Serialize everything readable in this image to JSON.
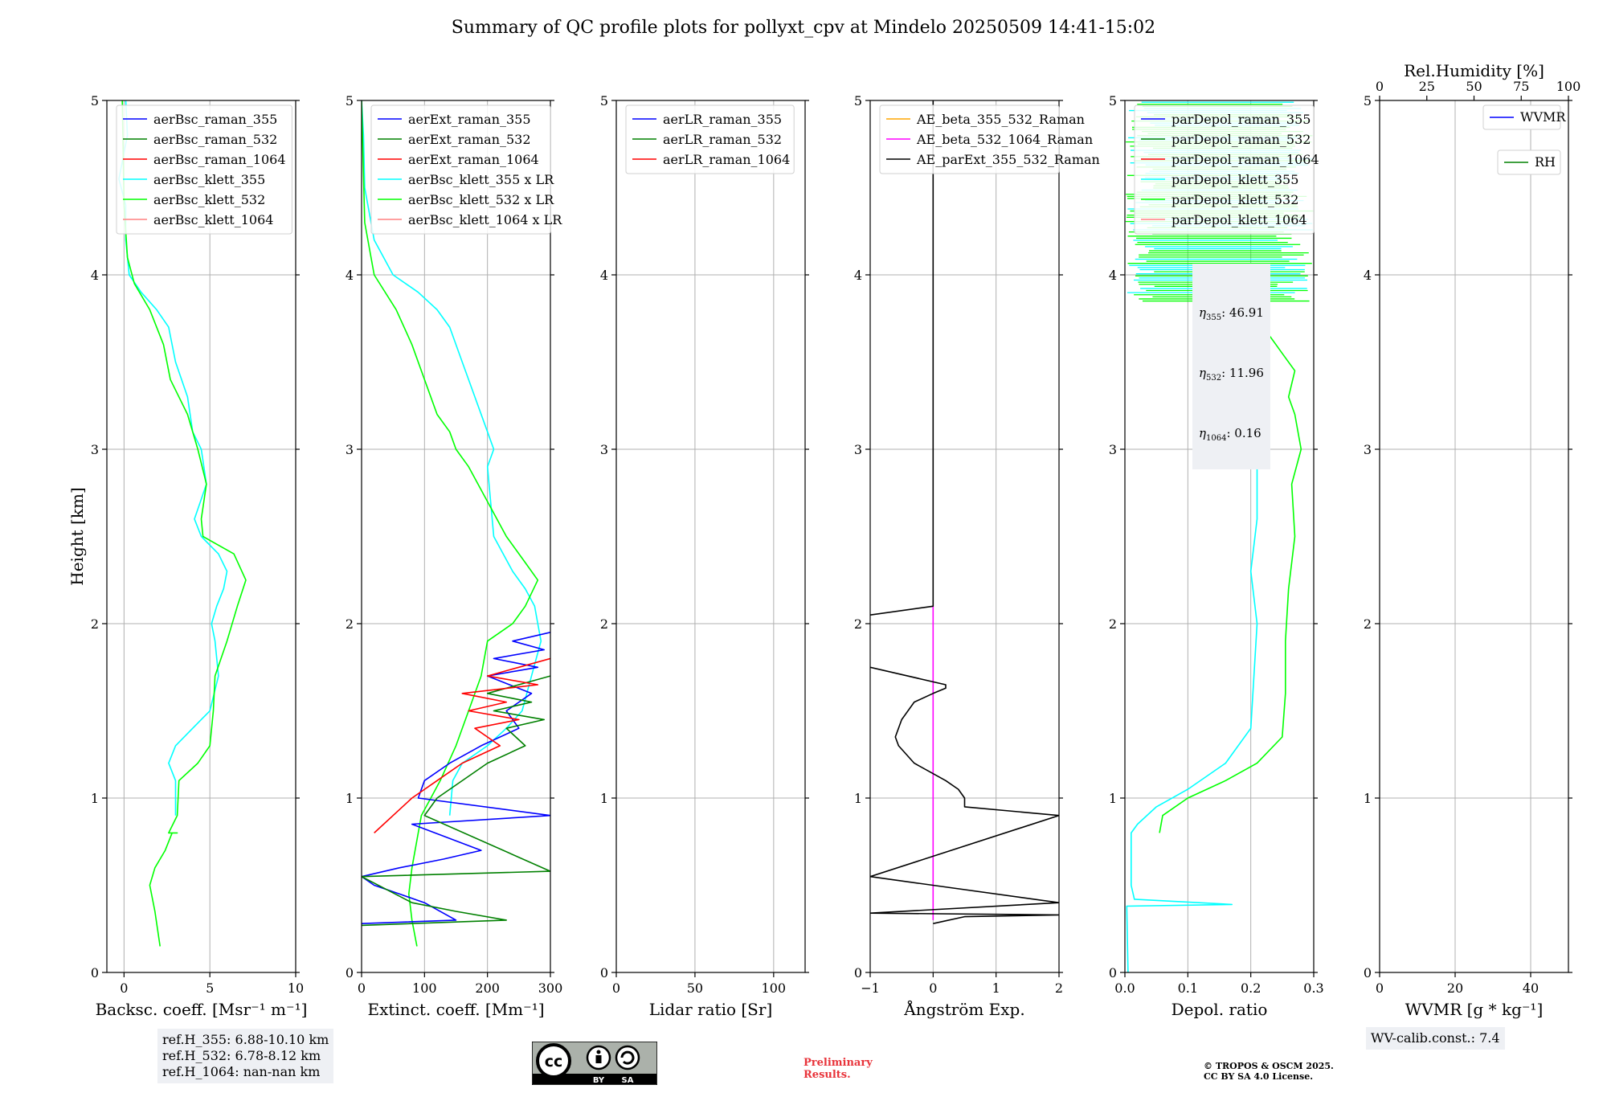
{
  "title": "Summary of QC profile plots for pollyxt_cpv at Mindelo 20250509 14:41-15:02",
  "colors": {
    "blue": "#0000ff",
    "green": "#008000",
    "red": "#ff0000",
    "cyan": "#00ffff",
    "lime": "#00ff00",
    "pink": "#ff8080",
    "orange": "#ffa500",
    "magenta": "#ff00ff",
    "black": "#000000"
  },
  "chart_data": [
    {
      "type": "line",
      "id": "bsc",
      "xlabel": "Backsc. coeff. [Msr⁻¹ m⁻¹]",
      "ylabel": "Height [km]",
      "xlim": [
        -1,
        10
      ],
      "ylim": [
        0,
        5
      ],
      "xticks": [
        0,
        5,
        10
      ],
      "xticklabels": [
        "0",
        "5",
        "10"
      ],
      "yticks": [
        0,
        1,
        2,
        3,
        4,
        5
      ],
      "yticklabels": [
        "0",
        "1",
        "2",
        "3",
        "4",
        "5"
      ],
      "grid": true,
      "legend": "top",
      "legend_entries": [
        {
          "name": "aerBsc_raman_355",
          "color": "#0000ff"
        },
        {
          "name": "aerBsc_raman_532",
          "color": "#008000"
        },
        {
          "name": "aerBsc_raman_1064",
          "color": "#ff0000"
        },
        {
          "name": "aerBsc_klett_355",
          "color": "#00ffff"
        },
        {
          "name": "aerBsc_klett_532",
          "color": "#00ff00"
        },
        {
          "name": "aerBsc_klett_1064",
          "color": "#ff8080"
        }
      ],
      "series": [
        {
          "name": "aerBsc_klett_355",
          "color": "#00ffff",
          "x": [
            3.0,
            3.0,
            2.6,
            3.0,
            4.0,
            5.0,
            5.5,
            5.3,
            5.1,
            5.4,
            5.8,
            6.0,
            5.5,
            4.5,
            4.1,
            4.8,
            4.5,
            4.0,
            3.7,
            3.0,
            2.6,
            1.9,
            1.0,
            0.3,
            0.1,
            0.1,
            -0.3,
            0.2,
            0.1
          ],
          "y": [
            0.9,
            1.1,
            1.2,
            1.3,
            1.4,
            1.5,
            1.7,
            1.9,
            2.0,
            2.1,
            2.2,
            2.3,
            2.4,
            2.5,
            2.6,
            2.8,
            3.0,
            3.1,
            3.3,
            3.5,
            3.7,
            3.8,
            3.9,
            4.0,
            4.2,
            4.4,
            4.55,
            4.8,
            5.0
          ]
        },
        {
          "name": "aerBsc_klett_532",
          "color": "#00ff00",
          "x": [
            2.1,
            1.8,
            1.5,
            1.8,
            2.4,
            2.8,
            3.1,
            2.6,
            3.1,
            3.2,
            4.3,
            5.0,
            5.2,
            5.3,
            6.0,
            6.6,
            7.1,
            6.4,
            4.6,
            4.5,
            4.8,
            4.3,
            3.7,
            2.7,
            2.3,
            1.5,
            0.6,
            0.2,
            0.0,
            -0.1
          ],
          "y": [
            0.15,
            0.35,
            0.5,
            0.6,
            0.7,
            0.8,
            0.8,
            0.8,
            0.9,
            1.1,
            1.2,
            1.3,
            1.5,
            1.7,
            1.9,
            2.1,
            2.25,
            2.4,
            2.5,
            2.6,
            2.8,
            3.0,
            3.2,
            3.4,
            3.6,
            3.8,
            3.95,
            4.1,
            4.4,
            5.0
          ]
        }
      ]
    },
    {
      "type": "line",
      "id": "ext",
      "xlabel": "Extinct. coeff. [Mm⁻¹]",
      "ylabel": "",
      "xlim": [
        0,
        300
      ],
      "ylim": [
        0,
        5
      ],
      "xticks": [
        0,
        100,
        200,
        300
      ],
      "xticklabels": [
        "0",
        "100",
        "200",
        "300"
      ],
      "yticks": [
        0,
        1,
        2,
        3,
        4,
        5
      ],
      "yticklabels": [
        "0",
        "1",
        "2",
        "3",
        "4",
        "5"
      ],
      "grid": true,
      "legend": "top",
      "legend_entries": [
        {
          "name": "aerExt_raman_355",
          "color": "#0000ff"
        },
        {
          "name": "aerExt_raman_532",
          "color": "#008000"
        },
        {
          "name": "aerExt_raman_1064",
          "color": "#ff0000"
        },
        {
          "name": "aerBsc_klett_355 x LR",
          "color": "#00ffff"
        },
        {
          "name": "aerBsc_klett_532 x LR",
          "color": "#00ff00"
        },
        {
          "name": "aerBsc_klett_1064 x LR",
          "color": "#ff8080"
        }
      ],
      "series": [
        {
          "name": "aerBsc_klett_355 x LR",
          "color": "#00ffff",
          "x": [
            140,
            145,
            160,
            200,
            230,
            255,
            270,
            285,
            280,
            275,
            260,
            240,
            210,
            205,
            200,
            210,
            200,
            180,
            160,
            140,
            120,
            90,
            50,
            20,
            5,
            3,
            0
          ],
          "y": [
            0.9,
            1.1,
            1.2,
            1.3,
            1.4,
            1.5,
            1.7,
            1.9,
            2.0,
            2.1,
            2.2,
            2.3,
            2.5,
            2.7,
            2.9,
            3.0,
            3.1,
            3.3,
            3.5,
            3.7,
            3.8,
            3.9,
            4.0,
            4.2,
            4.5,
            4.8,
            5.0
          ]
        },
        {
          "name": "aerBsc_klett_532 x LR",
          "color": "#00ff00",
          "x": [
            88,
            80,
            75,
            80,
            90,
            95,
            110,
            125,
            150,
            170,
            190,
            200,
            240,
            260,
            280,
            260,
            230,
            200,
            170,
            150,
            140,
            120,
            100,
            80,
            55,
            20,
            5,
            0
          ],
          "y": [
            0.15,
            0.3,
            0.45,
            0.6,
            0.8,
            0.9,
            1.0,
            1.1,
            1.3,
            1.5,
            1.7,
            1.9,
            2.0,
            2.1,
            2.25,
            2.35,
            2.5,
            2.7,
            2.9,
            3.0,
            3.1,
            3.2,
            3.4,
            3.6,
            3.8,
            4.0,
            4.3,
            5.0
          ]
        },
        {
          "name": "aerExt_raman_355",
          "color": "#0000ff",
          "x": [
            0,
            150,
            100,
            60,
            20,
            0,
            60,
            130,
            190,
            80,
            300,
            90,
            100,
            140,
            190,
            250,
            230,
            270,
            200,
            280,
            210,
            290,
            240,
            300
          ],
          "y": [
            0.28,
            0.3,
            0.4,
            0.45,
            0.5,
            0.55,
            0.6,
            0.65,
            0.7,
            0.85,
            0.9,
            1.0,
            1.1,
            1.2,
            1.3,
            1.4,
            1.5,
            1.6,
            1.7,
            1.75,
            1.8,
            1.85,
            1.9,
            1.95
          ]
        },
        {
          "name": "aerExt_raman_532",
          "color": "#008000",
          "x": [
            0,
            230,
            150,
            80,
            0,
            300,
            100,
            120,
            200,
            260,
            230,
            290,
            210,
            270,
            200,
            300
          ],
          "y": [
            0.27,
            0.3,
            0.35,
            0.4,
            0.55,
            0.58,
            0.9,
            1.0,
            1.2,
            1.3,
            1.4,
            1.45,
            1.5,
            1.55,
            1.6,
            1.7
          ]
        },
        {
          "name": "aerExt_raman_1064",
          "color": "#ff0000",
          "x": [
            20,
            50,
            80,
            120,
            160,
            220,
            180,
            250,
            170,
            230,
            160,
            280,
            200,
            300
          ],
          "y": [
            0.8,
            0.9,
            1.0,
            1.1,
            1.2,
            1.3,
            1.4,
            1.45,
            1.5,
            1.55,
            1.6,
            1.65,
            1.7,
            1.8
          ]
        }
      ]
    },
    {
      "type": "line",
      "id": "lr",
      "xlabel": "Lidar ratio [Sr]",
      "ylabel": "",
      "xlim": [
        0,
        120
      ],
      "ylim": [
        0,
        5
      ],
      "xticks": [
        0,
        50,
        100
      ],
      "xticklabels": [
        "0",
        "50",
        "100"
      ],
      "yticks": [
        0,
        1,
        2,
        3,
        4,
        5
      ],
      "yticklabels": [
        "0",
        "1",
        "2",
        "3",
        "4",
        "5"
      ],
      "grid": true,
      "legend": "top",
      "legend_entries": [
        {
          "name": "aerLR_raman_355",
          "color": "#0000ff"
        },
        {
          "name": "aerLR_raman_532",
          "color": "#008000"
        },
        {
          "name": "aerLR_raman_1064",
          "color": "#ff0000"
        }
      ],
      "series": []
    },
    {
      "type": "line",
      "id": "ae",
      "xlabel": "Ångström Exp.",
      "ylabel": "",
      "xlim": [
        -1,
        2
      ],
      "ylim": [
        0,
        5
      ],
      "xticks": [
        -1,
        0,
        1,
        2
      ],
      "xticklabels": [
        "−1",
        "0",
        "1",
        "2"
      ],
      "yticks": [
        0,
        1,
        2,
        3,
        4,
        5
      ],
      "yticklabels": [
        "0",
        "1",
        "2",
        "3",
        "4",
        "5"
      ],
      "grid": true,
      "legend": "top",
      "legend_entries": [
        {
          "name": "AE_beta_355_532_Raman",
          "color": "#ffa500"
        },
        {
          "name": "AE_beta_532_1064_Raman",
          "color": "#ff00ff"
        },
        {
          "name": "AE_parExt_355_532_Raman",
          "color": "#000000"
        }
      ],
      "series": [
        {
          "name": "AE_beta_532_1064_Raman",
          "color": "#ff00ff",
          "x": [
            0,
            0
          ],
          "y": [
            0.3,
            2.1
          ]
        },
        {
          "name": "AE_parExt_355_532_Raman",
          "color": "#000000",
          "x": [
            0,
            0.5,
            2,
            -1,
            2,
            -1,
            2,
            0.5,
            0.5,
            0.4,
            0.2,
            -0.3,
            -0.55,
            -0.6,
            -0.5,
            -0.3,
            0,
            0.2,
            0.2,
            -1
          ],
          "y": [
            0.28,
            0.32,
            0.33,
            0.34,
            0.4,
            0.55,
            0.9,
            0.95,
            1.0,
            1.05,
            1.1,
            1.2,
            1.3,
            1.35,
            1.45,
            1.55,
            1.6,
            1.63,
            1.65,
            1.75
          ]
        },
        {
          "name": "AE_parExt_355_532_Raman",
          "color": "#000000",
          "x": [
            -1,
            0,
            0,
            0
          ],
          "y": [
            2.05,
            2.1,
            4.3,
            5.0
          ]
        }
      ]
    },
    {
      "type": "line",
      "id": "depol",
      "xlabel": "Depol. ratio",
      "ylabel": "",
      "xlim": [
        0,
        0.3
      ],
      "ylim": [
        0,
        5
      ],
      "xticks": [
        0,
        0.1,
        0.2,
        0.3
      ],
      "xticklabels": [
        "0.0",
        "0.1",
        "0.2",
        "0.3"
      ],
      "yticks": [
        0,
        1,
        2,
        3,
        4,
        5
      ],
      "yticklabels": [
        "0",
        "1",
        "2",
        "3",
        "4",
        "5"
      ],
      "grid": true,
      "legend": "top",
      "legend_entries": [
        {
          "name": "parDepol_raman_355",
          "color": "#0000ff"
        },
        {
          "name": "parDepol_raman_532",
          "color": "#008000"
        },
        {
          "name": "parDepol_raman_1064",
          "color": "#ff0000"
        },
        {
          "name": "parDepol_klett_355",
          "color": "#00ffff"
        },
        {
          "name": "parDepol_klett_532",
          "color": "#00ff00"
        },
        {
          "name": "parDepol_klett_1064",
          "color": "#ff8080"
        }
      ],
      "series": [
        {
          "name": "parDepol_klett_355",
          "color": "#00ffff",
          "x": [
            0.005,
            0.003,
            0.17,
            0.015,
            0.01,
            0.01,
            0.01,
            0.02,
            0.05,
            0.1,
            0.16,
            0.2,
            0.205,
            0.21,
            0.2,
            0.21,
            0.21,
            0.205,
            0.2,
            0.21,
            0.2,
            0.18,
            0.17
          ],
          "y": [
            0.0,
            0.38,
            0.39,
            0.42,
            0.5,
            0.7,
            0.8,
            0.85,
            0.95,
            1.05,
            1.2,
            1.4,
            1.7,
            2.0,
            2.3,
            2.6,
            2.9,
            3.1,
            3.3,
            3.45,
            3.6,
            3.7,
            3.72
          ]
        },
        {
          "name": "parDepol_klett_532",
          "color": "#00ff00",
          "x": [
            0.055,
            0.06,
            0.1,
            0.16,
            0.21,
            0.25,
            0.255,
            0.255,
            0.26,
            0.27,
            0.265,
            0.28,
            0.27,
            0.26,
            0.27,
            0.25,
            0.24,
            0.22
          ],
          "y": [
            0.8,
            0.9,
            1.0,
            1.1,
            1.2,
            1.35,
            1.6,
            1.9,
            2.2,
            2.5,
            2.8,
            3.0,
            3.2,
            3.3,
            3.45,
            3.55,
            3.6,
            3.7
          ]
        }
      ],
      "dense_band": {
        "y_from": 3.85,
        "y_to": 5.0
      }
    },
    {
      "type": "line",
      "id": "wv",
      "xlabel": "WVMR [g * kg⁻¹]",
      "ylabel": "",
      "xlim": [
        0,
        50
      ],
      "ylim": [
        0,
        5
      ],
      "xticks": [
        0,
        20,
        40
      ],
      "xticklabels": [
        "0",
        "20",
        "40"
      ],
      "yticks": [
        0,
        1,
        2,
        3,
        4,
        5
      ],
      "yticklabels": [
        "0",
        "1",
        "2",
        "3",
        "4",
        "5"
      ],
      "top_axis": {
        "label": "Rel.Humidity [%]",
        "lim": [
          0,
          100
        ],
        "ticks": [
          0,
          25,
          50,
          75,
          100
        ],
        "ticklabels": [
          "0",
          "25",
          "50",
          "75",
          "100"
        ]
      },
      "grid": true,
      "legend": "top-right",
      "legend_entries": [
        {
          "name": "WVMR",
          "color": "#0000ff"
        },
        {
          "name": "RH",
          "color": "#008000"
        }
      ],
      "series": []
    }
  ],
  "annotations": {
    "eta_lines": [
      "355: 46.91",
      "532: 11.96",
      "1064: 0.16"
    ],
    "ref_lines": [
      "ref.H_355: 6.88-10.10 km",
      "ref.H_532: 6.78-8.12 km",
      "ref.H_1064: nan-nan km"
    ],
    "wv_calib": "WV-calib.const.: 7.4",
    "prelim_1": "Preliminary",
    "prelim_2": "Results.",
    "copyright_1": "© TROPOS & OSCM 2025.",
    "copyright_2": "CC BY SA 4.0 License.",
    "cc_by": "BY",
    "cc_sa": "SA"
  }
}
